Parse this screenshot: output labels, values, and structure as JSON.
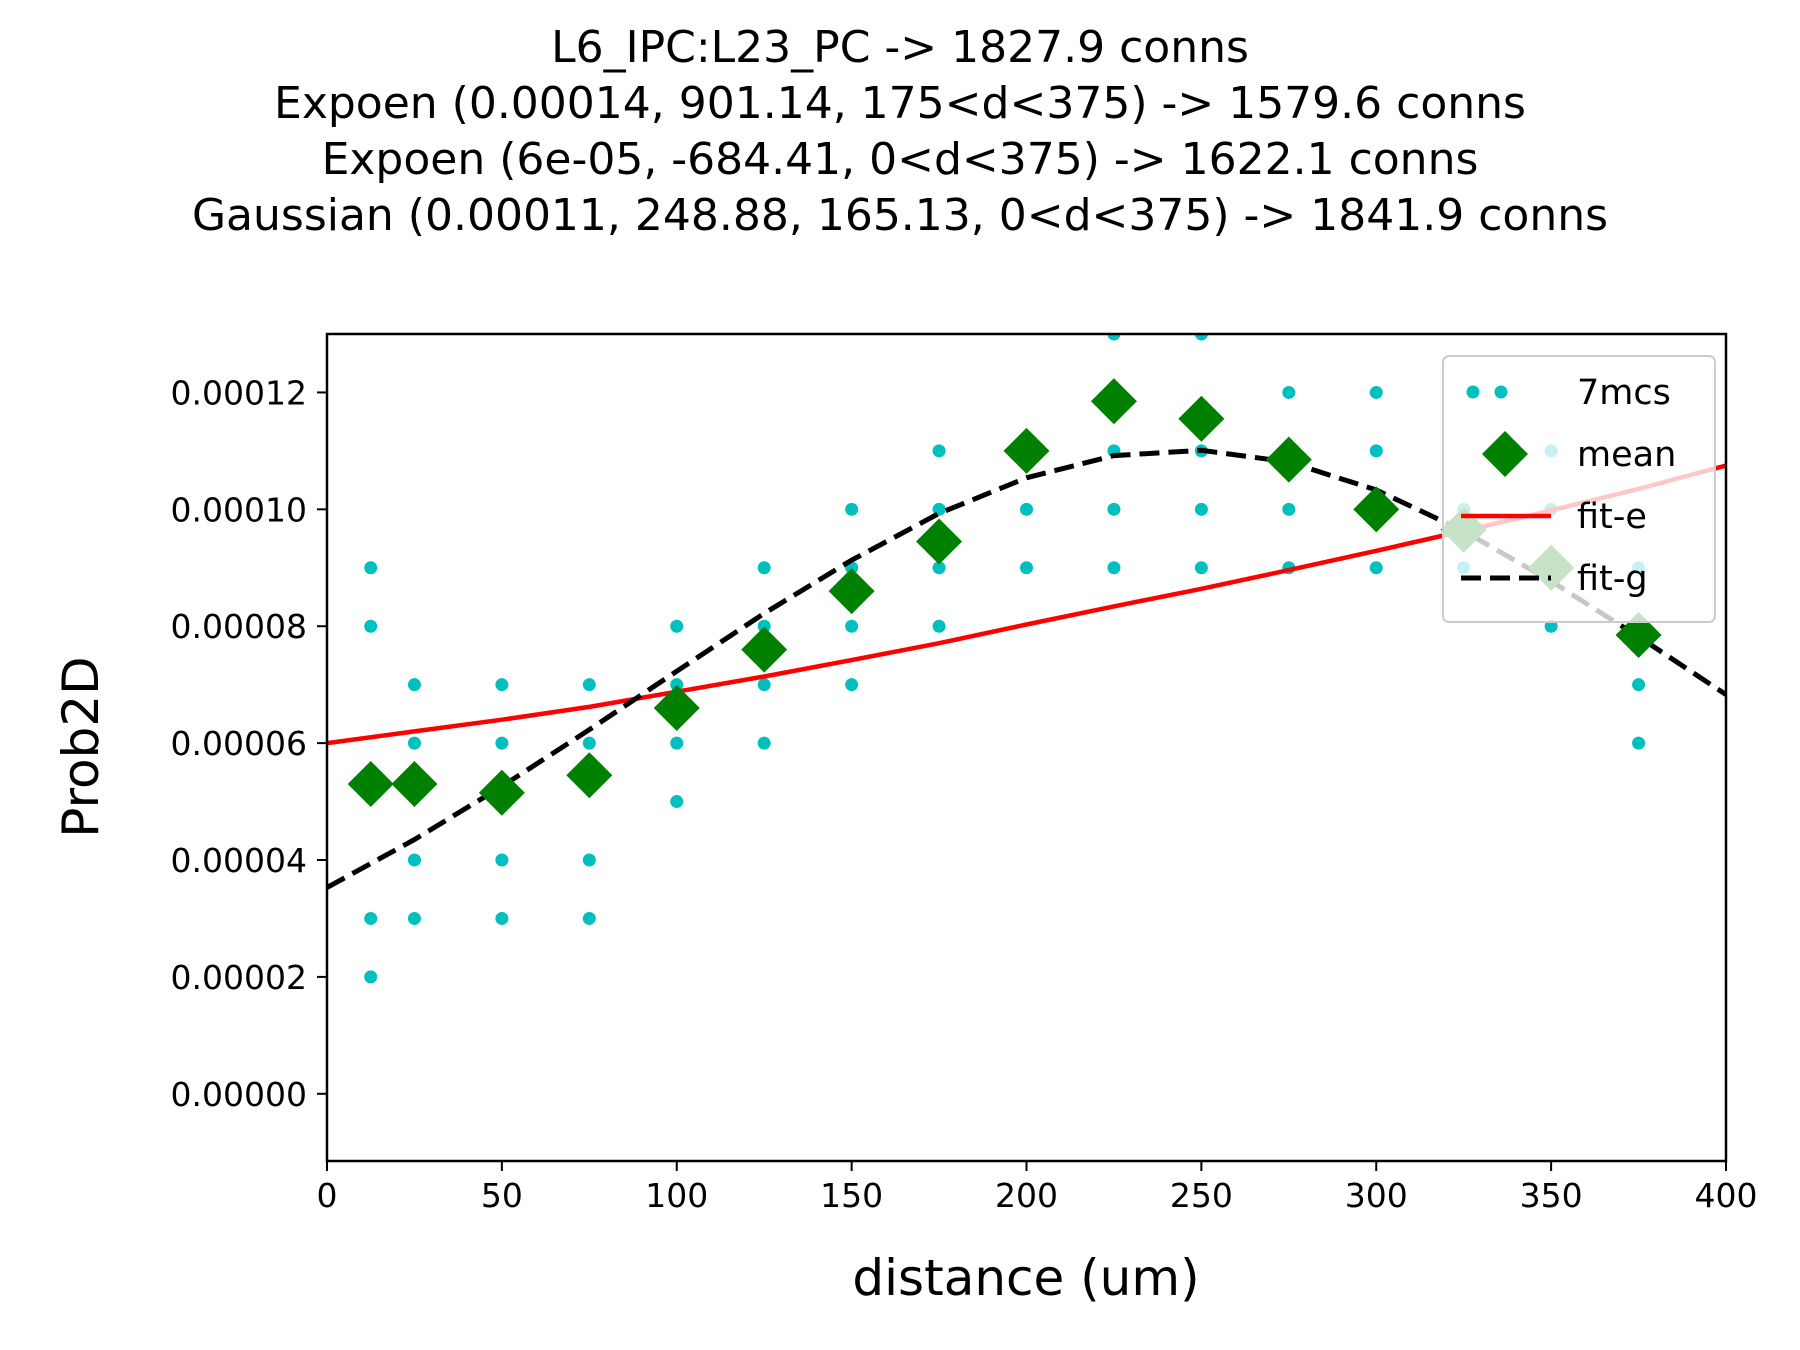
{
  "chart_data": {
    "type": "scatter",
    "title_lines": [
      "L6_IPC:L23_PC -> 1827.9 conns",
      "Expoen (0.00014, 901.14, 175<d<375) -> 1579.6 conns",
      "Expoen (6e-05, -684.41, 0<d<375) -> 1622.1 conns",
      "Gaussian (0.00011, 248.88, 165.13, 0<d<375) -> 1841.9 conns"
    ],
    "xlabel": "distance (um)",
    "ylabel": "Prob2D",
    "xlim": [
      0,
      400
    ],
    "ylim": [
      -1.15e-05,
      0.00013
    ],
    "x_ticks": [
      0,
      50,
      100,
      150,
      200,
      250,
      300,
      350,
      400
    ],
    "x_tick_labels": [
      "0",
      "50",
      "100",
      "150",
      "200",
      "250",
      "300",
      "350",
      "400"
    ],
    "y_ticks": [
      0,
      2e-05,
      4e-05,
      6e-05,
      8e-05,
      0.0001,
      0.00012
    ],
    "y_tick_labels": [
      "0.00000",
      "0.00002",
      "0.00004",
      "0.00006",
      "0.00008",
      "0.00010",
      "0.00012"
    ],
    "legend_position": "top-right",
    "series": [
      {
        "name": "7mcs",
        "kind": "points",
        "color": "#00bfbf",
        "points": [
          [
            12.5,
            2e-05
          ],
          [
            12.5,
            3e-05
          ],
          [
            12.5,
            8e-05
          ],
          [
            12.5,
            9e-05
          ],
          [
            25,
            3e-05
          ],
          [
            25,
            4e-05
          ],
          [
            25,
            6e-05
          ],
          [
            25,
            7e-05
          ],
          [
            50,
            3e-05
          ],
          [
            50,
            4e-05
          ],
          [
            50,
            6e-05
          ],
          [
            50,
            7e-05
          ],
          [
            75,
            3e-05
          ],
          [
            75,
            4e-05
          ],
          [
            75,
            6e-05
          ],
          [
            75,
            7e-05
          ],
          [
            100,
            5e-05
          ],
          [
            100,
            6e-05
          ],
          [
            100,
            7e-05
          ],
          [
            100,
            8e-05
          ],
          [
            125,
            6e-05
          ],
          [
            125,
            7e-05
          ],
          [
            125,
            8e-05
          ],
          [
            125,
            9e-05
          ],
          [
            150,
            7e-05
          ],
          [
            150,
            8e-05
          ],
          [
            150,
            9e-05
          ],
          [
            150,
            0.0001
          ],
          [
            175,
            8e-05
          ],
          [
            175,
            9e-05
          ],
          [
            175,
            0.0001
          ],
          [
            175,
            0.00011
          ],
          [
            200,
            9e-05
          ],
          [
            200,
            0.0001
          ],
          [
            200,
            0.00011
          ],
          [
            225,
            9e-05
          ],
          [
            225,
            0.0001
          ],
          [
            225,
            0.00011
          ],
          [
            225,
            0.00013
          ],
          [
            250,
            9e-05
          ],
          [
            250,
            0.0001
          ],
          [
            250,
            0.00011
          ],
          [
            250,
            0.00013
          ],
          [
            275,
            9e-05
          ],
          [
            275,
            0.0001
          ],
          [
            275,
            0.00011
          ],
          [
            275,
            0.00012
          ],
          [
            300,
            9e-05
          ],
          [
            300,
            0.0001
          ],
          [
            300,
            0.00011
          ],
          [
            300,
            0.00012
          ],
          [
            325,
            9e-05
          ],
          [
            325,
            0.0001
          ],
          [
            350,
            8e-05
          ],
          [
            350,
            9e-05
          ],
          [
            350,
            0.0001
          ],
          [
            350,
            0.00011
          ],
          [
            375,
            6e-05
          ],
          [
            375,
            7e-05
          ],
          [
            375,
            8e-05
          ],
          [
            375,
            9e-05
          ]
        ]
      },
      {
        "name": "mean",
        "kind": "diamonds",
        "color": "#008000",
        "x": [
          12.5,
          25,
          50,
          75,
          100,
          125,
          150,
          175,
          200,
          225,
          250,
          275,
          300,
          325,
          350,
          375
        ],
        "y": [
          5.3e-05,
          5.3e-05,
          5.15e-05,
          5.45e-05,
          6.6e-05,
          7.6e-05,
          8.6e-05,
          9.45e-05,
          0.00011,
          0.0001185,
          0.0001155,
          0.0001085,
          0.0001,
          9.65e-05,
          9e-05,
          7.85e-05
        ]
      },
      {
        "name": "fit-e",
        "kind": "line",
        "color": "#ff0000",
        "x": [
          0,
          25,
          50,
          75,
          100,
          125,
          150,
          175,
          200,
          225,
          250,
          275,
          300,
          325,
          350,
          375,
          400
        ],
        "y": [
          6e-05,
          6.2e-05,
          6.4e-05,
          6.62e-05,
          6.88e-05,
          7.14e-05,
          7.42e-05,
          7.71e-05,
          8.03e-05,
          8.34e-05,
          8.64e-05,
          8.96e-05,
          9.29e-05,
          9.63e-05,
          9.98e-05,
          0.0001035,
          0.0001075
        ]
      },
      {
        "name": "fit-g",
        "kind": "dashed",
        "color": "#000000",
        "x": [
          0,
          25,
          50,
          75,
          100,
          125,
          150,
          175,
          200,
          225,
          250,
          275,
          300,
          325,
          350,
          375,
          400
        ],
        "y": [
          3.53e-05,
          4.35e-05,
          5.26e-05,
          6.23e-05,
          7.23e-05,
          8.22e-05,
          9.13e-05,
          9.93e-05,
          0.0001054,
          0.0001092,
          0.0001101,
          0.0001081,
          0.0001033,
          9.63e-05,
          8.77e-05,
          7.82e-05,
          6.83e-05
        ]
      }
    ]
  }
}
